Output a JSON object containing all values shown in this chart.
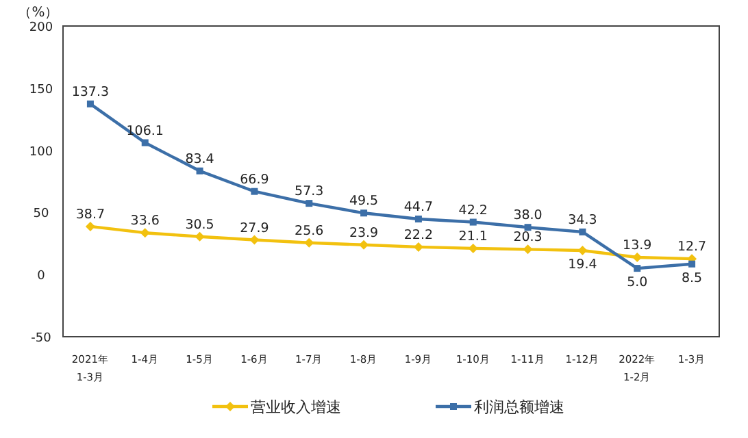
{
  "chart_data": {
    "type": "line",
    "ylabel": "（%）",
    "categories": [
      "2021年1-3月",
      "1-4月",
      "1-5月",
      "1-6月",
      "1-7月",
      "1-8月",
      "1-9月",
      "1-10月",
      "1-11月",
      "1-12月",
      "2022年1-2月",
      "1-3月"
    ],
    "series": [
      {
        "name": "营业收入增速",
        "color": "#f2c10f",
        "marker": "diamond",
        "values": [
          38.7,
          33.6,
          30.5,
          27.9,
          25.6,
          23.9,
          22.2,
          21.1,
          20.3,
          19.4,
          13.9,
          12.7
        ],
        "value_labels": [
          "38.7",
          "33.6",
          "30.5",
          "27.9",
          "25.6",
          "23.9",
          "22.2",
          "21.1",
          "20.3",
          "19.4",
          "13.9",
          "12.7"
        ]
      },
      {
        "name": "利润总额增速",
        "color": "#3c6fa8",
        "marker": "square",
        "values": [
          137.3,
          106.1,
          83.4,
          66.9,
          57.3,
          49.5,
          44.7,
          42.2,
          38.0,
          34.3,
          5.0,
          8.5
        ],
        "value_labels": [
          "137.3",
          "106.1",
          "83.4",
          "66.9",
          "57.3",
          "49.5",
          "44.7",
          "42.2",
          "38.0",
          "34.3",
          "5.0",
          "8.5"
        ]
      }
    ],
    "ylim": [
      -50,
      200
    ],
    "yticks": [
      -50,
      0,
      50,
      100,
      150,
      200
    ],
    "legend": "bottom"
  }
}
